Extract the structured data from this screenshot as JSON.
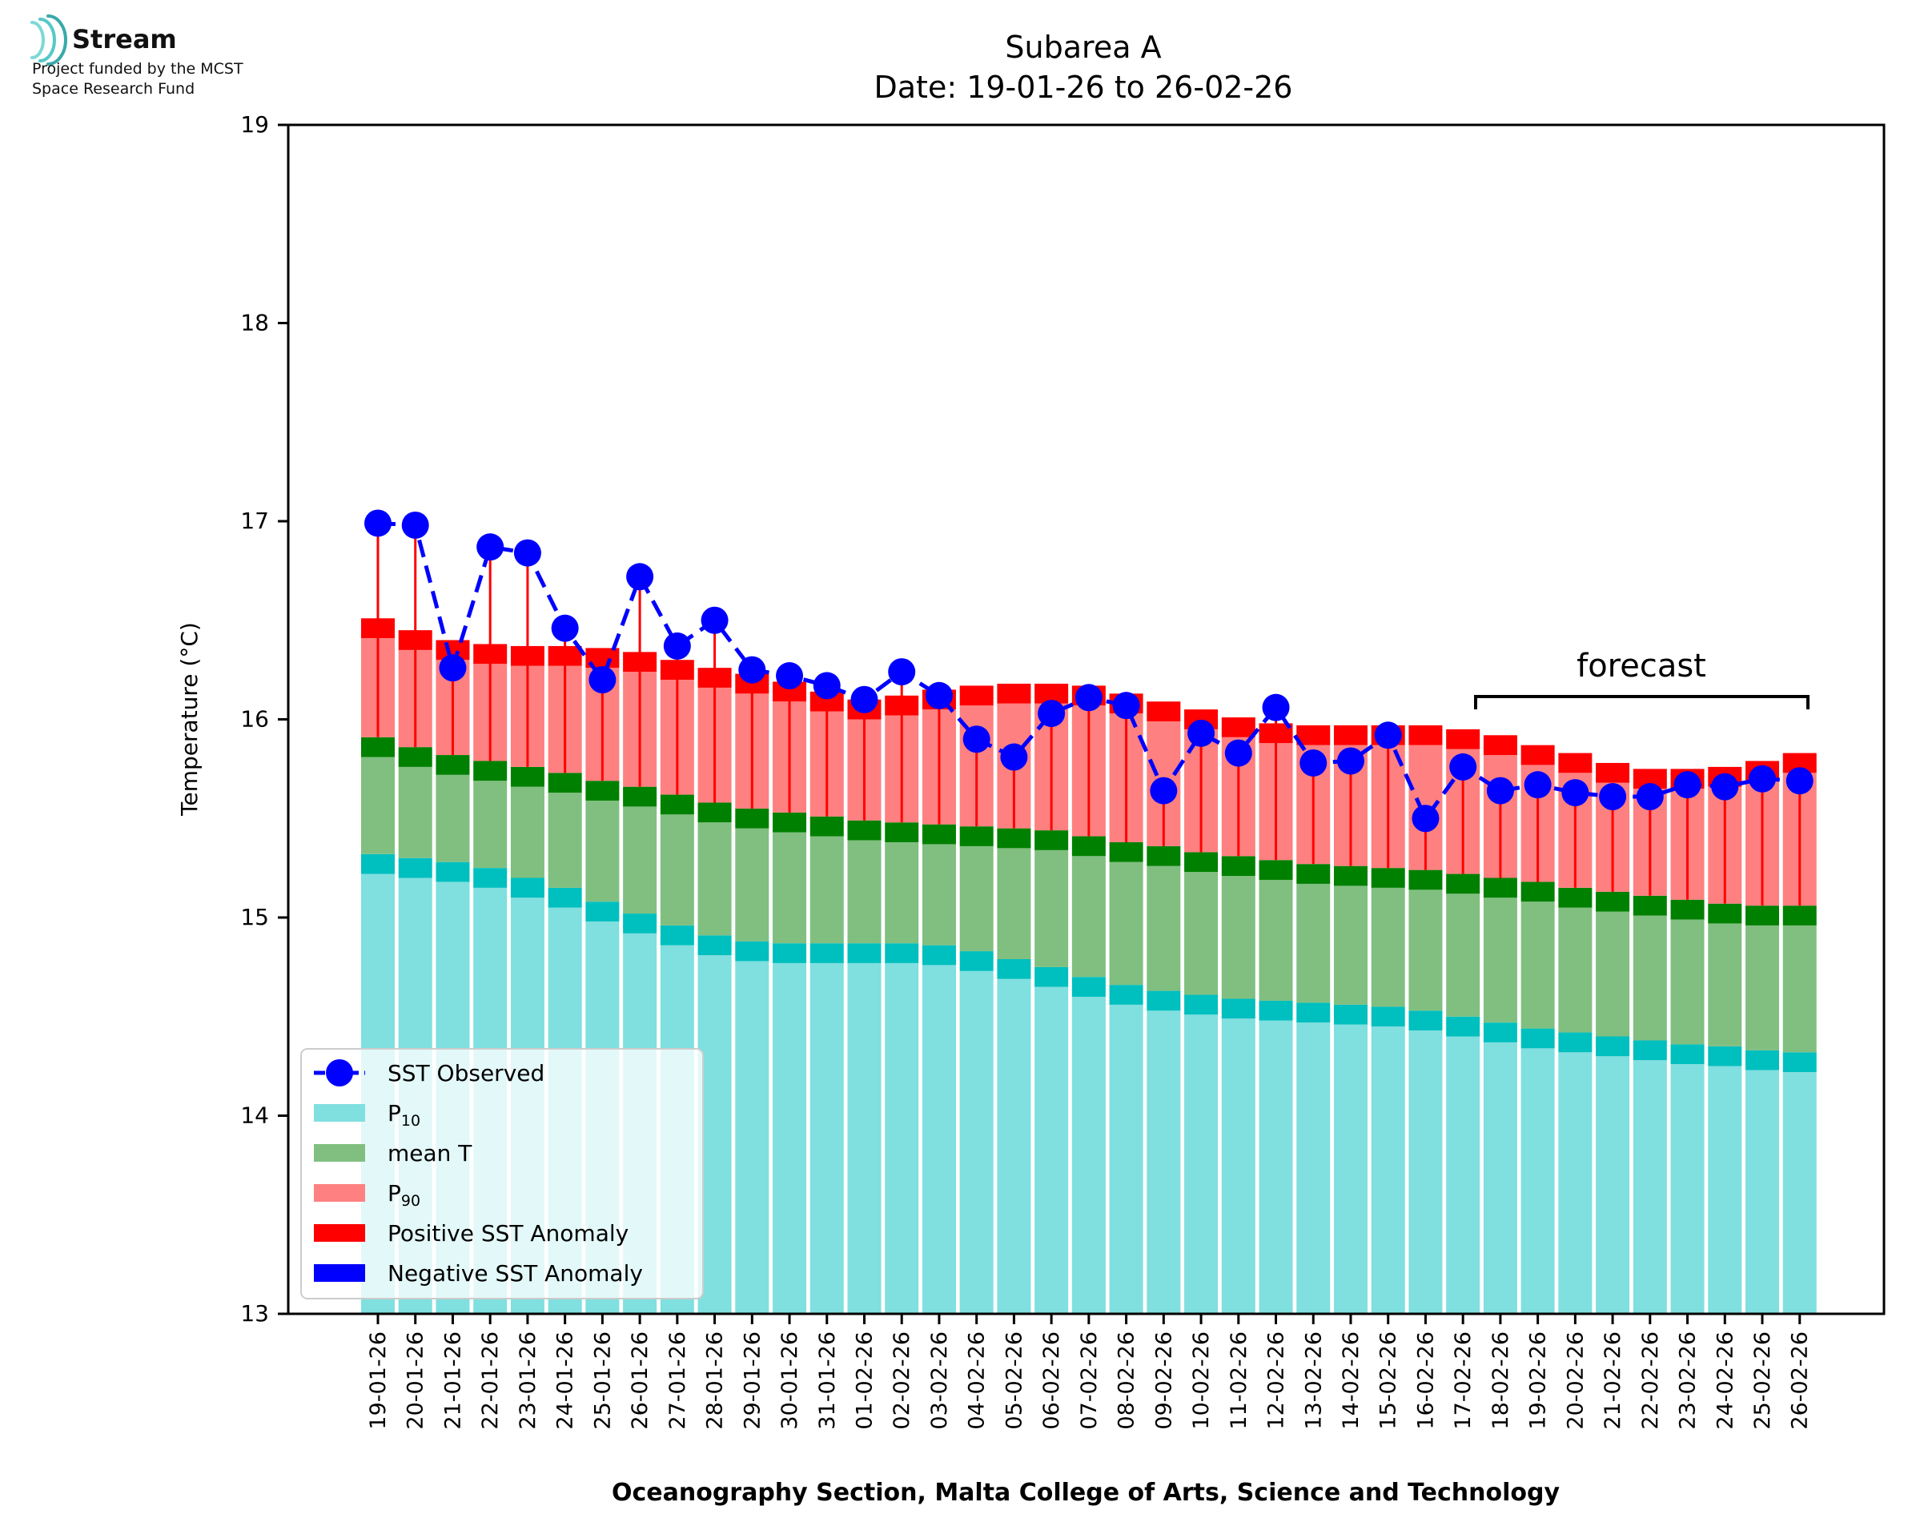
{
  "logo": {
    "name": "Stream",
    "funding_line1": "Project funded by the MCST",
    "funding_line2": "Space Research Fund"
  },
  "colors": {
    "p10": "#80dfdf",
    "p10_cap": "#00bfbf",
    "mean": "#80bf80",
    "mean_cap": "#008000",
    "p90": "#ff8080",
    "pos_anom": "#ff0000",
    "neg_anom": "#0000ff",
    "observed": "#0000ff"
  },
  "chart_data": {
    "type": "bar",
    "title": "Subarea A",
    "subtitle": "Date: 19-01-26 to 26-02-26",
    "ylabel": "Temperature (°C)",
    "xlabel": "Oceanography Section, Malta College of Arts, Science and Technology",
    "ylim": [
      13,
      19
    ],
    "yticks": [
      13,
      14,
      15,
      16,
      17,
      18,
      19
    ],
    "grid": false,
    "legend_position": "bottom-left",
    "forecast_label": "forecast",
    "forecast_range": [
      "18-02-26",
      "26-02-26"
    ],
    "categories": [
      "19-01-26",
      "20-01-26",
      "21-01-26",
      "22-01-26",
      "23-01-26",
      "24-01-26",
      "25-01-26",
      "26-01-26",
      "27-01-26",
      "28-01-26",
      "29-01-26",
      "30-01-26",
      "31-01-26",
      "01-02-26",
      "02-02-26",
      "03-02-26",
      "04-02-26",
      "05-02-26",
      "06-02-26",
      "07-02-26",
      "08-02-26",
      "09-02-26",
      "10-02-26",
      "11-02-26",
      "12-02-26",
      "13-02-26",
      "14-02-26",
      "15-02-26",
      "16-02-26",
      "17-02-26",
      "18-02-26",
      "19-02-26",
      "20-02-26",
      "21-02-26",
      "22-02-26",
      "23-02-26",
      "24-02-26",
      "25-02-26",
      "26-02-26"
    ],
    "series": [
      {
        "name": "P10",
        "legend_base": "P",
        "legend_sub": "10",
        "values": [
          15.32,
          15.3,
          15.28,
          15.25,
          15.2,
          15.15,
          15.08,
          15.02,
          14.96,
          14.91,
          14.88,
          14.87,
          14.87,
          14.87,
          14.87,
          14.86,
          14.83,
          14.79,
          14.75,
          14.7,
          14.66,
          14.63,
          14.61,
          14.59,
          14.58,
          14.57,
          14.56,
          14.55,
          14.53,
          14.5,
          14.47,
          14.44,
          14.42,
          14.4,
          14.38,
          14.36,
          14.35,
          14.33,
          14.32
        ]
      },
      {
        "name": "mean T",
        "values": [
          15.91,
          15.86,
          15.82,
          15.79,
          15.76,
          15.73,
          15.69,
          15.66,
          15.62,
          15.58,
          15.55,
          15.53,
          15.51,
          15.49,
          15.48,
          15.47,
          15.46,
          15.45,
          15.44,
          15.41,
          15.38,
          15.36,
          15.33,
          15.31,
          15.29,
          15.27,
          15.26,
          15.25,
          15.24,
          15.22,
          15.2,
          15.18,
          15.15,
          15.13,
          15.11,
          15.09,
          15.07,
          15.06,
          15.06
        ]
      },
      {
        "name": "P90",
        "legend_base": "P",
        "legend_sub": "90",
        "values": [
          16.51,
          16.45,
          16.4,
          16.38,
          16.37,
          16.37,
          16.36,
          16.34,
          16.3,
          16.26,
          16.23,
          16.19,
          16.14,
          16.1,
          16.12,
          16.15,
          16.17,
          16.18,
          16.18,
          16.17,
          16.13,
          16.09,
          16.05,
          16.01,
          15.98,
          15.97,
          15.97,
          15.97,
          15.97,
          15.95,
          15.92,
          15.87,
          15.83,
          15.78,
          15.75,
          15.75,
          15.76,
          15.79,
          15.83
        ]
      },
      {
        "name": "SST Observed",
        "values": [
          16.99,
          16.98,
          16.26,
          16.87,
          16.84,
          16.46,
          16.2,
          16.72,
          16.37,
          16.5,
          16.25,
          16.22,
          16.17,
          16.1,
          16.24,
          16.12,
          15.9,
          15.81,
          16.03,
          16.11,
          16.07,
          15.64,
          15.93,
          15.83,
          16.06,
          15.78,
          15.79,
          15.92,
          15.5,
          15.76,
          15.64,
          15.67,
          15.63,
          15.61,
          15.61,
          15.67,
          15.66,
          15.7,
          15.69
        ]
      }
    ],
    "legend": [
      {
        "key": "observed",
        "label": "SST Observed"
      },
      {
        "key": "p10",
        "label_base": "P",
        "label_sub": "10"
      },
      {
        "key": "mean",
        "label": "mean T"
      },
      {
        "key": "p90",
        "label_base": "P",
        "label_sub": "90"
      },
      {
        "key": "pos_anom",
        "label": "Positive SST Anomaly"
      },
      {
        "key": "neg_anom",
        "label": "Negative SST Anomaly"
      }
    ]
  }
}
